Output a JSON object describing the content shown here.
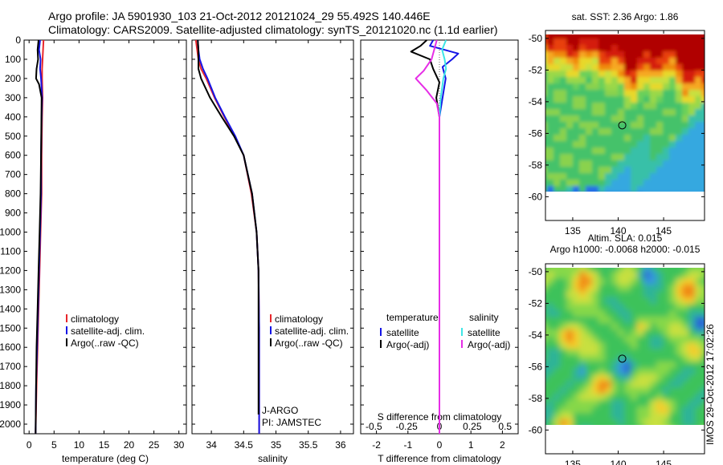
{
  "title_line1": "Argo profile: JA 5901930_103 21-Oct-2012 20121024_29 55.492S 140.446E",
  "title_line2": "Climatology: CARS2009. Satellite-adjusted climatology: synTS_20121020.nc (1.1d earlier)",
  "timestamp": "IMOS 29-Oct-2012 17:02:26",
  "colors": {
    "climatology": "#e8262b",
    "satellite": "#1414e6",
    "argo": "#000000",
    "sal_satellite": "#3ee6e6",
    "sal_argo": "#e62ee6"
  },
  "chart_data": [
    {
      "type": "line",
      "id": "temperature",
      "xlabel": "temperature (deg C)",
      "ylabel": "",
      "xlim": [
        -1,
        31.5
      ],
      "ylim": [
        2050,
        0
      ],
      "xticks": [
        0,
        5,
        10,
        15,
        20,
        25,
        30
      ],
      "xticklabels": [
        "0",
        "5",
        "10",
        "15",
        "20",
        "25",
        "30"
      ],
      "yticks": [
        0,
        100,
        200,
        300,
        400,
        500,
        600,
        700,
        800,
        900,
        1000,
        1100,
        1200,
        1300,
        1400,
        1500,
        1600,
        1700,
        1800,
        1900,
        2000
      ],
      "yticklabels": [
        "0",
        "100",
        "200",
        "300",
        "400",
        "500",
        "600",
        "700",
        "800",
        "900",
        "1000",
        "1100",
        "1200",
        "1300",
        "1400",
        "1500",
        "1600",
        "1700",
        "1800",
        "1900",
        "2000"
      ],
      "legend": [
        "climatology",
        "satellite-adj. clim.",
        "Argo(..raw -QC)"
      ],
      "series": [
        {
          "name": "climatology",
          "color": "#e8262b",
          "x": [
            2.9,
            2.8,
            2.7,
            2.6,
            2.6,
            2.7,
            2.6,
            2.5,
            2.5,
            2.3,
            2.1,
            1.9,
            1.7,
            1.5,
            1.3
          ],
          "y": [
            0,
            50,
            100,
            150,
            200,
            300,
            400,
            600,
            800,
            1000,
            1200,
            1400,
            1600,
            1800,
            2050
          ]
        },
        {
          "name": "satellite-adj. clim.",
          "color": "#1414e6",
          "x": [
            2.2,
            2.0,
            2.3,
            2.2,
            2.4,
            2.6,
            2.5,
            2.4,
            2.4,
            2.2,
            2.0,
            1.8,
            1.6,
            1.4,
            1.3
          ],
          "y": [
            0,
            50,
            100,
            150,
            200,
            300,
            400,
            600,
            800,
            1000,
            1200,
            1400,
            1600,
            1800,
            2050
          ]
        },
        {
          "name": "Argo(..raw -QC)",
          "color": "#000000",
          "x": [
            1.9,
            1.7,
            1.8,
            1.5,
            1.4,
            2.0,
            2.5,
            2.4,
            2.3,
            2.1,
            1.9,
            1.7,
            1.5,
            1.4,
            1.3
          ],
          "y": [
            0,
            50,
            100,
            150,
            200,
            230,
            300,
            600,
            800,
            1000,
            1200,
            1400,
            1600,
            1800,
            2050
          ]
        }
      ]
    },
    {
      "type": "line",
      "id": "salinity",
      "xlabel": "salinity",
      "ylabel": "",
      "xlim": [
        33.7,
        36.2
      ],
      "ylim": [
        2050,
        0
      ],
      "xticks": [
        34,
        34.5,
        35,
        35.5,
        36
      ],
      "xticklabels": [
        "34",
        "34.5",
        "35",
        "35.5",
        "36"
      ],
      "legend": [
        "climatology",
        "satellite-adj. clim.",
        "Argo(..raw -QC)"
      ],
      "annotation": [
        "J-ARGO",
        "PI: JAMSTEC"
      ],
      "series": [
        {
          "name": "climatology",
          "color": "#e8262b",
          "x": [
            33.76,
            33.78,
            33.8,
            33.84,
            33.92,
            34.05,
            34.2,
            34.36,
            34.5,
            34.62,
            34.7,
            34.73,
            34.74,
            34.74
          ],
          "y": [
            0,
            50,
            100,
            150,
            200,
            300,
            400,
            500,
            600,
            800,
            1000,
            1200,
            1500,
            2050
          ]
        },
        {
          "name": "satellite-adj. clim.",
          "color": "#1414e6",
          "x": [
            33.79,
            33.8,
            33.82,
            33.87,
            33.94,
            34.06,
            34.21,
            34.37,
            34.5,
            34.63,
            34.7,
            34.73,
            34.74,
            34.74
          ],
          "y": [
            0,
            50,
            100,
            150,
            200,
            300,
            400,
            500,
            600,
            800,
            1000,
            1200,
            1500,
            2050
          ]
        },
        {
          "name": "Argo(..raw -QC)",
          "color": "#000000",
          "x": [
            33.79,
            33.8,
            33.8,
            33.8,
            33.84,
            33.98,
            34.16,
            34.35,
            34.5,
            34.63,
            34.7,
            34.73,
            34.73,
            34.73
          ],
          "y": [
            0,
            50,
            100,
            150,
            200,
            300,
            400,
            500,
            600,
            800,
            1000,
            1200,
            1500,
            1950
          ]
        }
      ]
    },
    {
      "type": "line",
      "id": "difference",
      "xlabel": "T difference from climatology",
      "xlabel_top": "S difference from climatology",
      "xlim": [
        -2.5,
        2.5
      ],
      "ylim": [
        2050,
        0
      ],
      "xticks": [
        -2,
        -1,
        0,
        1,
        2
      ],
      "xticklabels": [
        "-2",
        "-1",
        "0",
        "1",
        "2"
      ],
      "sticks": [
        -0.5,
        -0.25,
        0,
        0.25,
        0.5
      ],
      "sticklabels": [
        "-0.5",
        "-0.25",
        "0",
        "0.25",
        "0.5"
      ],
      "legend_temperature": {
        "title": "temperature",
        "items": [
          "satellite",
          "Argo(-adj)"
        ]
      },
      "legend_salinity": {
        "title": "salinity",
        "items": [
          "satellite",
          "Argo(-adj)"
        ]
      },
      "series": [
        {
          "name": "temperature satellite",
          "color": "#1414e6",
          "x": [
            -0.2,
            -0.3,
            0.6,
            0.4,
            0.1,
            0.2,
            0.1,
            0.0,
            0.0,
            0.0,
            0.0,
            0.0,
            0.0,
            0.0,
            0.0
          ],
          "y": [
            0,
            30,
            70,
            100,
            140,
            200,
            300,
            400,
            600,
            800,
            1000,
            1200,
            1500,
            1800,
            2050
          ]
        },
        {
          "name": "temperature Argo(-adj)",
          "color": "#000000",
          "x": [
            -0.4,
            -0.6,
            -0.9,
            -0.3,
            -0.2,
            0.0,
            -0.1,
            0.0,
            0.0,
            0.0,
            0.0,
            0.0,
            0.0,
            0.0,
            0.0
          ],
          "y": [
            0,
            30,
            60,
            100,
            150,
            220,
            300,
            400,
            600,
            800,
            1000,
            1200,
            1500,
            1800,
            2050
          ]
        },
        {
          "name": "salinity satellite",
          "color": "#3ee6e6",
          "x": [
            0.05,
            0.02,
            0.04,
            0.05,
            0.03,
            0.02,
            0.01,
            0.0,
            0.0,
            0.0,
            0.0,
            0.0,
            0.0,
            0.0
          ],
          "y": [
            0,
            50,
            100,
            150,
            200,
            250,
            300,
            400,
            600,
            800,
            1000,
            1400,
            1800,
            2050
          ]
        },
        {
          "name": "salinity Argo(-adj)",
          "color": "#e62ee6",
          "x": [
            -0.02,
            -0.04,
            -0.06,
            -0.12,
            -0.18,
            -0.1,
            -0.02,
            0.0,
            0.0,
            0.0,
            0.0
          ],
          "y": [
            0,
            50,
            100,
            160,
            200,
            260,
            330,
            400,
            600,
            1000,
            2050
          ]
        }
      ]
    },
    {
      "type": "heatmap",
      "id": "sst_map",
      "title": "sat. SST: 2.36 Argo: 1.86",
      "xlim": [
        132,
        149.5
      ],
      "ylim": [
        -61.5,
        -49.5
      ],
      "xticks": [
        135,
        140,
        145
      ],
      "xticklabels": [
        "135",
        "140",
        "145"
      ],
      "yticks": [
        -50,
        -52,
        -54,
        -56,
        -58,
        -60
      ],
      "yticklabels": [
        "-50",
        "-52",
        "-54",
        "-56",
        "-58",
        "-60"
      ],
      "data_extent": {
        "lon": [
          132,
          149.5
        ],
        "lat": [
          -60.2,
          -49.5
        ]
      },
      "marker": {
        "lon": 140.446,
        "lat": -55.492
      }
    },
    {
      "type": "heatmap",
      "id": "sla_map",
      "title": "Altim. SLA: 0.015",
      "subtitle": "Argo h1000: -0.0068 h2000: -0.015",
      "xlim": [
        132,
        149.5
      ],
      "ylim": [
        -61.5,
        -49.5
      ],
      "xticks": [
        135,
        140,
        145
      ],
      "xticklabels": [
        "135",
        "140",
        "145"
      ],
      "yticks": [
        -50,
        -52,
        -54,
        -56,
        -58,
        -60
      ],
      "yticklabels": [
        "-50",
        "-52",
        "-54",
        "-56",
        "-58",
        "-60"
      ],
      "data_extent": {
        "lon": [
          132,
          149.5
        ],
        "lat": [
          -60.2,
          -49.5
        ]
      },
      "marker": {
        "lon": 140.446,
        "lat": -55.492
      }
    }
  ]
}
